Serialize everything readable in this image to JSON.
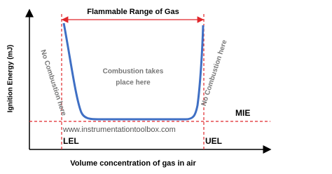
{
  "title": "Flammable Range of Gas",
  "y_axis_label": "Ignition Energy (mJ)",
  "x_axis_label": "Volume concentration of gas in air",
  "left_region": "No Combustion here",
  "right_region": "No Combustion here",
  "center_region": [
    "Combustion takes",
    "place here"
  ],
  "mie_label": "MIE",
  "lel_label": "LEL",
  "uel_label": "UEL",
  "watermark": "www.instrumentationtoolbox.com"
}
